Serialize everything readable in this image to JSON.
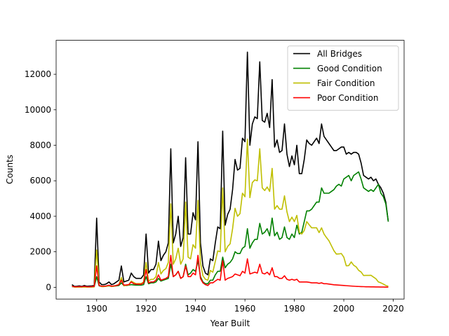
{
  "chart_data": {
    "type": "line",
    "x": [
      1890,
      1891,
      1892,
      1893,
      1894,
      1895,
      1896,
      1897,
      1898,
      1899,
      1900,
      1901,
      1902,
      1903,
      1904,
      1905,
      1906,
      1907,
      1908,
      1909,
      1910,
      1911,
      1912,
      1913,
      1914,
      1915,
      1916,
      1917,
      1918,
      1919,
      1920,
      1921,
      1922,
      1923,
      1924,
      1925,
      1926,
      1927,
      1928,
      1929,
      1930,
      1931,
      1932,
      1933,
      1934,
      1935,
      1936,
      1937,
      1938,
      1939,
      1940,
      1941,
      1942,
      1943,
      1944,
      1945,
      1946,
      1947,
      1948,
      1949,
      1950,
      1951,
      1952,
      1953,
      1954,
      1955,
      1956,
      1957,
      1958,
      1959,
      1960,
      1961,
      1962,
      1963,
      1964,
      1965,
      1966,
      1967,
      1968,
      1969,
      1970,
      1971,
      1972,
      1973,
      1974,
      1975,
      1976,
      1977,
      1978,
      1979,
      1980,
      1981,
      1982,
      1983,
      1984,
      1985,
      1986,
      1987,
      1988,
      1989,
      1990,
      1991,
      1992,
      1993,
      1994,
      1995,
      1996,
      1997,
      1998,
      1999,
      2000,
      2001,
      2002,
      2003,
      2004,
      2005,
      2006,
      2007,
      2008,
      2009,
      2010,
      2011,
      2012,
      2013,
      2014,
      2015,
      2016,
      2017,
      2018
    ],
    "series": [
      {
        "name": "All Bridges",
        "color": "#000000",
        "values": [
          150,
          50,
          60,
          80,
          50,
          100,
          60,
          70,
          80,
          100,
          3900,
          300,
          150,
          150,
          200,
          300,
          150,
          200,
          300,
          400,
          1200,
          300,
          350,
          400,
          800,
          600,
          500,
          500,
          500,
          700,
          3000,
          800,
          1000,
          1000,
          1300,
          2600,
          1500,
          1800,
          2000,
          2500,
          7800,
          2500,
          3000,
          4000,
          2300,
          2800,
          7300,
          3000,
          3000,
          4200,
          3800,
          8200,
          2500,
          1200,
          800,
          700,
          1600,
          1500,
          2500,
          3400,
          3300,
          8800,
          3500,
          4100,
          4400,
          5500,
          7200,
          6600,
          6700,
          8400,
          8200,
          13250,
          8000,
          9200,
          9600,
          9500,
          12700,
          9400,
          9300,
          9800,
          9000,
          11700,
          7900,
          8300,
          7600,
          7700,
          9200,
          7500,
          6800,
          7400,
          6900,
          8000,
          6400,
          6400,
          7200,
          8300,
          8100,
          8000,
          8200,
          8400,
          8100,
          9200,
          8500,
          8300,
          8100,
          7900,
          7700,
          7700,
          7800,
          7900,
          7900,
          7500,
          7600,
          7500,
          7600,
          7600,
          7500,
          7000,
          6300,
          6200,
          6100,
          6200,
          6000,
          6100,
          5800,
          5600,
          5300,
          4800,
          3700
        ]
      },
      {
        "name": "Good Condition",
        "color": "#008000",
        "values": [
          40,
          20,
          20,
          20,
          20,
          30,
          20,
          20,
          20,
          30,
          600,
          80,
          50,
          50,
          60,
          80,
          50,
          60,
          80,
          100,
          250,
          100,
          100,
          120,
          150,
          130,
          120,
          120,
          120,
          150,
          600,
          200,
          250,
          250,
          300,
          500,
          350,
          400,
          450,
          500,
          1300,
          600,
          700,
          900,
          500,
          600,
          1300,
          700,
          800,
          1000,
          900,
          1500,
          600,
          300,
          200,
          200,
          400,
          400,
          700,
          900,
          900,
          1700,
          1100,
          1300,
          1400,
          1600,
          2000,
          1900,
          1900,
          2200,
          2300,
          3300,
          2200,
          2500,
          2700,
          2700,
          3600,
          3000,
          3100,
          3300,
          2900,
          3900,
          2900,
          3100,
          2700,
          2800,
          3400,
          2800,
          2700,
          3000,
          2800,
          3500,
          3000,
          3100,
          3700,
          4300,
          4300,
          4400,
          4600,
          4800,
          4800,
          5600,
          5300,
          5300,
          5300,
          5400,
          5500,
          5700,
          5800,
          5700,
          6100,
          6200,
          6300,
          6000,
          6300,
          6400,
          6500,
          6100,
          5600,
          5500,
          5400,
          5500,
          5400,
          5600,
          5800,
          5300,
          5100,
          4700,
          3700
        ]
      },
      {
        "name": "Fair Condition",
        "color": "#bfbf00",
        "values": [
          60,
          10,
          10,
          20,
          10,
          20,
          10,
          20,
          20,
          20,
          2100,
          120,
          40,
          40,
          60,
          100,
          40,
          60,
          120,
          150,
          550,
          80,
          120,
          130,
          350,
          270,
          200,
          210,
          210,
          300,
          1400,
          350,
          450,
          450,
          600,
          1400,
          750,
          950,
          1050,
          1400,
          4700,
          1300,
          1600,
          2200,
          1300,
          1600,
          4800,
          1700,
          1600,
          2400,
          2200,
          4900,
          1400,
          650,
          450,
          400,
          950,
          850,
          1450,
          2050,
          2000,
          5600,
          2000,
          2300,
          2450,
          3300,
          4450,
          4000,
          4150,
          5300,
          5100,
          8350,
          5050,
          5900,
          6050,
          6000,
          7800,
          5600,
          5450,
          5650,
          5400,
          6700,
          4400,
          4600,
          4400,
          4400,
          5150,
          4250,
          3700,
          3950,
          3700,
          4050,
          3100,
          3000,
          3200,
          3700,
          3520,
          3350,
          3350,
          3350,
          3080,
          3350,
          3000,
          2800,
          2620,
          2340,
          2060,
          1870,
          1880,
          1900,
          1700,
          1210,
          1220,
          1430,
          1240,
          1150,
          955,
          860,
          665,
          670,
          670,
          675,
          575,
          480,
          300,
          250,
          180,
          100,
          60
        ]
      },
      {
        "name": "Poor Condition",
        "color": "#ff0000",
        "values": [
          50,
          30,
          30,
          40,
          30,
          50,
          30,
          30,
          40,
          50,
          1200,
          100,
          60,
          60,
          80,
          120,
          60,
          80,
          100,
          150,
          400,
          120,
          130,
          150,
          300,
          200,
          180,
          170,
          170,
          250,
          1000,
          250,
          300,
          300,
          400,
          700,
          400,
          450,
          500,
          600,
          1800,
          600,
          700,
          900,
          500,
          600,
          1200,
          600,
          600,
          800,
          700,
          1800,
          500,
          250,
          150,
          100,
          250,
          250,
          350,
          450,
          400,
          1500,
          400,
          500,
          550,
          600,
          750,
          700,
          650,
          900,
          800,
          1600,
          750,
          800,
          850,
          800,
          1300,
          800,
          750,
          850,
          700,
          1100,
          600,
          600,
          500,
          500,
          650,
          450,
          400,
          450,
          400,
          450,
          300,
          300,
          300,
          300,
          280,
          250,
          250,
          250,
          220,
          250,
          200,
          200,
          180,
          160,
          140,
          130,
          120,
          110,
          100,
          90,
          80,
          70,
          60,
          50,
          45,
          40,
          35,
          30,
          30,
          25,
          25,
          20,
          20,
          15,
          15,
          10,
          10
        ]
      }
    ],
    "xlabel": "Year Built",
    "ylabel": "Counts",
    "xlim": [
      1883.6,
      2024.4
    ],
    "xticks": [
      1900,
      1920,
      1940,
      1960,
      1980,
      2000,
      2020
    ],
    "ylim": [
      -662.5,
      13912.5
    ],
    "yticks": [
      0,
      2000,
      4000,
      6000,
      8000,
      10000,
      12000
    ],
    "grid": false,
    "legend": "upper right"
  }
}
